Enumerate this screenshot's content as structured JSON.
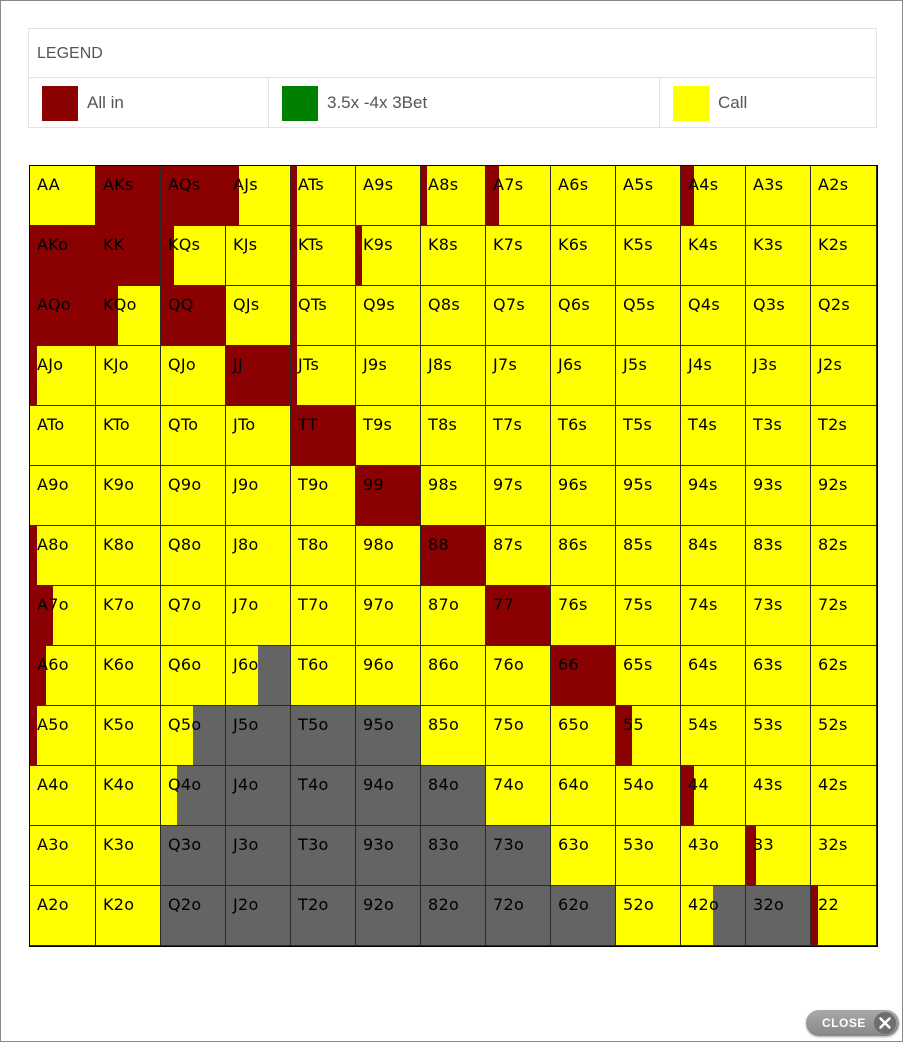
{
  "legend": {
    "title": "LEGEND",
    "items": [
      {
        "label": "All in",
        "color": "#8b0000"
      },
      {
        "label": "3.5x -4x 3Bet",
        "color": "#008000"
      },
      {
        "label": "Call",
        "color": "#ffff00"
      }
    ]
  },
  "action_colors": {
    "allin": "#8b0000",
    "call": "#ffff00",
    "fold": "#646464"
  },
  "grid": {
    "rows": [
      [
        "AA",
        "AKs",
        "AQs",
        "AJs",
        "ATs",
        "A9s",
        "A8s",
        "A7s",
        "A6s",
        "A5s",
        "A4s",
        "A3s",
        "A2s"
      ],
      [
        "AKo",
        "KK",
        "KQs",
        "KJs",
        "KTs",
        "K9s",
        "K8s",
        "K7s",
        "K6s",
        "K5s",
        "K4s",
        "K3s",
        "K2s"
      ],
      [
        "AQo",
        "KQo",
        "QQ",
        "QJs",
        "QTs",
        "Q9s",
        "Q8s",
        "Q7s",
        "Q6s",
        "Q5s",
        "Q4s",
        "Q3s",
        "Q2s"
      ],
      [
        "AJo",
        "KJo",
        "QJo",
        "JJ",
        "JTs",
        "J9s",
        "J8s",
        "J7s",
        "J6s",
        "J5s",
        "J4s",
        "J3s",
        "J2s"
      ],
      [
        "ATo",
        "KTo",
        "QTo",
        "JTo",
        "TT",
        "T9s",
        "T8s",
        "T7s",
        "T6s",
        "T5s",
        "T4s",
        "T3s",
        "T2s"
      ],
      [
        "A9o",
        "K9o",
        "Q9o",
        "J9o",
        "T9o",
        "99",
        "98s",
        "97s",
        "96s",
        "95s",
        "94s",
        "93s",
        "92s"
      ],
      [
        "A8o",
        "K8o",
        "Q8o",
        "J8o",
        "T8o",
        "98o",
        "88",
        "87s",
        "86s",
        "85s",
        "84s",
        "83s",
        "82s"
      ],
      [
        "A7o",
        "K7o",
        "Q7o",
        "J7o",
        "T7o",
        "97o",
        "87o",
        "77",
        "76s",
        "75s",
        "74s",
        "73s",
        "72s"
      ],
      [
        "A6o",
        "K6o",
        "Q6o",
        "J6o",
        "T6o",
        "96o",
        "86o",
        "76o",
        "66",
        "65s",
        "64s",
        "63s",
        "62s"
      ],
      [
        "A5o",
        "K5o",
        "Q5o",
        "J5o",
        "T5o",
        "95o",
        "85o",
        "75o",
        "65o",
        "55",
        "54s",
        "53s",
        "52s"
      ],
      [
        "A4o",
        "K4o",
        "Q4o",
        "J4o",
        "T4o",
        "94o",
        "84o",
        "74o",
        "64o",
        "54o",
        "44",
        "43s",
        "42s"
      ],
      [
        "A3o",
        "K3o",
        "Q3o",
        "J3o",
        "T3o",
        "93o",
        "83o",
        "73o",
        "63o",
        "53o",
        "43o",
        "33",
        "32s"
      ],
      [
        "A2o",
        "K2o",
        "Q2o",
        "J2o",
        "T2o",
        "92o",
        "82o",
        "72o",
        "62o",
        "52o",
        "42o",
        "32o",
        "22"
      ]
    ]
  },
  "mixes": {
    "AKs": {
      "allin": 1
    },
    "AQs": {
      "allin": 1
    },
    "AJs": {
      "allin": 0.2
    },
    "ATs": {
      "allin": 0.1
    },
    "A8s": {
      "allin": 0.1
    },
    "A7s": {
      "allin": 0.2
    },
    "A4s": {
      "allin": 0.2
    },
    "AKo": {
      "allin": 1
    },
    "KK": {
      "allin": 1
    },
    "KQs": {
      "allin": 0.2
    },
    "KTs": {
      "allin": 0.1
    },
    "K9s": {
      "allin": 0.1
    },
    "AQo": {
      "allin": 1
    },
    "KQo": {
      "allin": 0.35
    },
    "QQ": {
      "allin": 1
    },
    "QTs": {
      "allin": 0.1
    },
    "AJo": {
      "allin": 0.1
    },
    "JJ": {
      "allin": 1
    },
    "JTs": {
      "allin": 0.1
    },
    "TT": {
      "allin": 1
    },
    "99": {
      "allin": 1
    },
    "A8o": {
      "allin": 0.1
    },
    "88": {
      "allin": 1
    },
    "A7o": {
      "allin": 0.35
    },
    "77": {
      "allin": 1
    },
    "A6o": {
      "allin": 0.25
    },
    "J6o": {
      "fold": 0.5
    },
    "66": {
      "allin": 1
    },
    "A5o": {
      "allin": 0.1
    },
    "Q5o": {
      "fold": 0.5
    },
    "J5o": {
      "fold": 1
    },
    "T5o": {
      "fold": 1
    },
    "95o": {
      "fold": 1
    },
    "55": {
      "allin": 0.25
    },
    "Q4o": {
      "fold": 0.75
    },
    "J4o": {
      "fold": 1
    },
    "T4o": {
      "fold": 1
    },
    "94o": {
      "fold": 1
    },
    "84o": {
      "fold": 1
    },
    "44": {
      "allin": 0.2
    },
    "Q3o": {
      "fold": 1
    },
    "J3o": {
      "fold": 1
    },
    "T3o": {
      "fold": 1
    },
    "93o": {
      "fold": 1
    },
    "83o": {
      "fold": 1
    },
    "73o": {
      "fold": 1
    },
    "33": {
      "allin": 0.15
    },
    "Q2o": {
      "fold": 1
    },
    "J2o": {
      "fold": 1
    },
    "T2o": {
      "fold": 1
    },
    "92o": {
      "fold": 1
    },
    "82o": {
      "fold": 1
    },
    "72o": {
      "fold": 1
    },
    "62o": {
      "fold": 1
    },
    "42o": {
      "fold": 0.5
    },
    "32o": {
      "fold": 1
    },
    "22": {
      "allin": 0.1
    }
  },
  "close_label": "CLOSE"
}
